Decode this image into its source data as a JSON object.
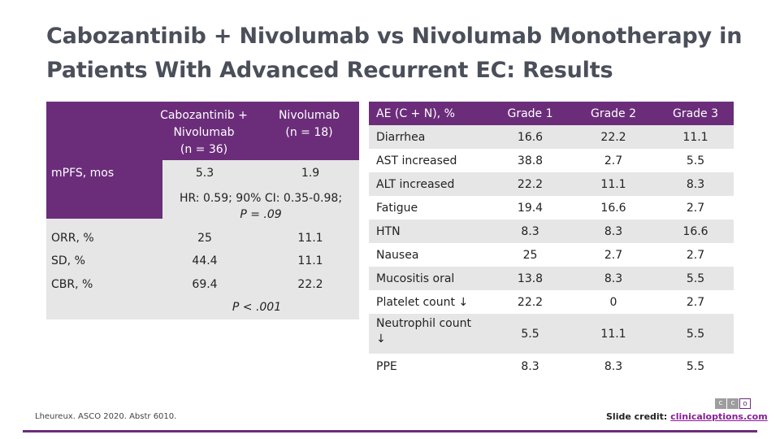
{
  "title": "Cabozantinib + Nivolumab vs Nivolumab Monotherapy in Patients With Advanced Recurrent EC: Results",
  "left_table": {
    "col1_header": [
      "Cabozantinib +",
      "Nivolumab",
      "(n = 36)"
    ],
    "col2_header": [
      "Nivolumab",
      "(n = 18)"
    ],
    "mpfs_label": "mPFS, mos",
    "mpfs_col1": "5.3",
    "mpfs_col2": "1.9",
    "hr_line1": "HR: 0.59; 90% CI: 0.35-0.98;",
    "hr_line2": "P = .09",
    "rows": [
      {
        "label": "ORR, %",
        "col1": "25",
        "col2": "11.1"
      },
      {
        "label": "SD, %",
        "col1": "44.4",
        "col2": "11.1"
      },
      {
        "label": "CBR, %",
        "col1": "69.4",
        "col2": "22.2"
      }
    ],
    "p_footer": "P < .001"
  },
  "right_table": {
    "headers": [
      "AE (C + N), %",
      "Grade 1",
      "Grade 2",
      "Grade 3"
    ],
    "rows": [
      {
        "label": "Diarrhea",
        "g1": "16.6",
        "g2": "22.2",
        "g3": "11.1"
      },
      {
        "label": "AST increased",
        "g1": "38.8",
        "g2": "2.7",
        "g3": "5.5"
      },
      {
        "label": "ALT increased",
        "g1": "22.2",
        "g2": "11.1",
        "g3": "8.3"
      },
      {
        "label": "Fatigue",
        "g1": "19.4",
        "g2": "16.6",
        "g3": "2.7"
      },
      {
        "label": "HTN",
        "g1": "8.3",
        "g2": "8.3",
        "g3": "16.6"
      },
      {
        "label": "Nausea",
        "g1": "25",
        "g2": "2.7",
        "g3": "2.7"
      },
      {
        "label": "Mucositis oral",
        "g1": "13.8",
        "g2": "8.3",
        "g3": "5.5"
      },
      {
        "label": "Platelet count ↓",
        "g1": "22.2",
        "g2": "0",
        "g3": "2.7"
      },
      {
        "label_line1": "Neutrophil count",
        "label_line2": "↓",
        "g1": "5.5",
        "g2": "11.1",
        "g3": "5.5"
      },
      {
        "label": "PPE",
        "g1": "8.3",
        "g2": "8.3",
        "g3": "5.5"
      }
    ]
  },
  "footer": {
    "citation": "Lheureux. ASCO 2020. Abstr 6010.",
    "credit_prefix": "Slide credit: ",
    "credit_link": "clinicaloptions.com",
    "logo_letters": [
      "c",
      "c",
      "o"
    ]
  },
  "colors": {
    "accent": "#6b2d7a",
    "row_light": "#e6e6e6"
  }
}
